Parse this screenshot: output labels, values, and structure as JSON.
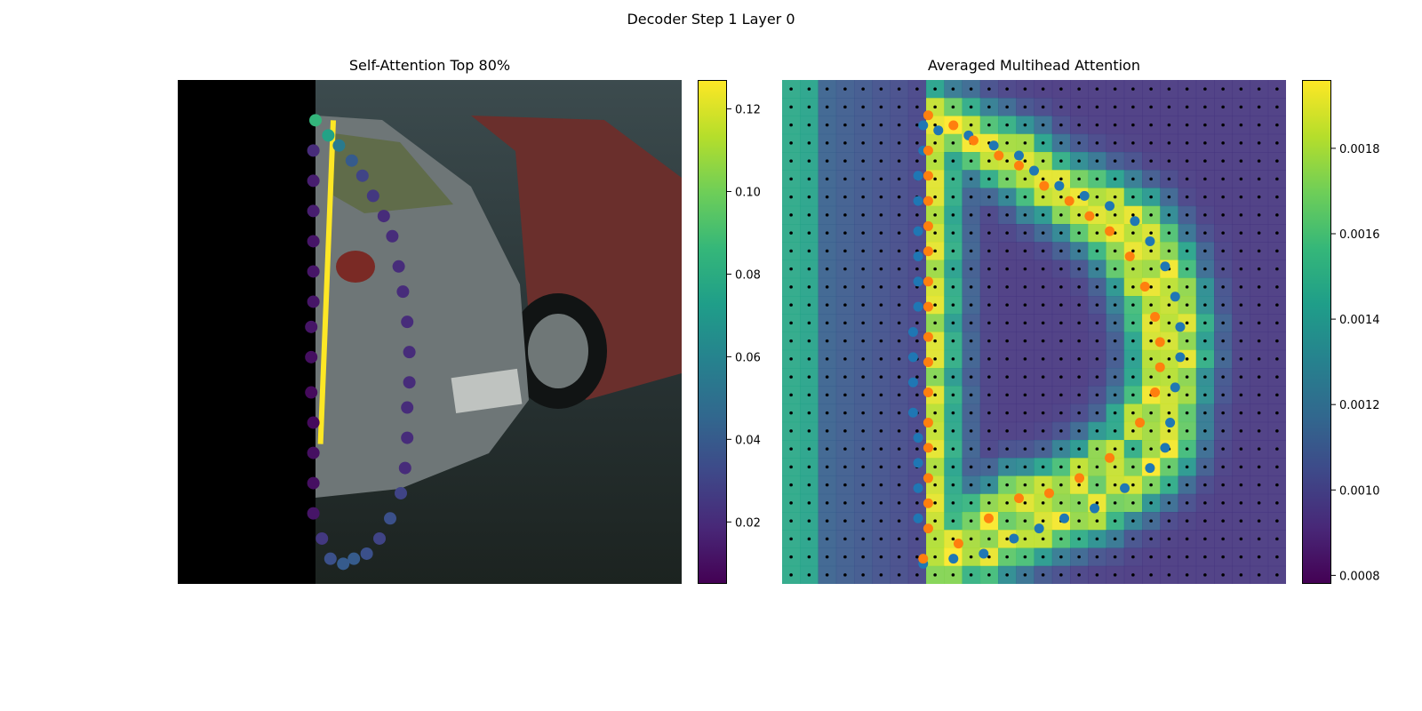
{
  "figure": {
    "title": "Decoder Step 1 Layer 0"
  },
  "chart_data": [
    {
      "type": "scatter",
      "title": "Self-Attention Top 80%",
      "background": "camera image (parked cars), left part masked black",
      "colorbar": {
        "ticks": [
          "0.02",
          "0.04",
          "0.06",
          "0.08",
          "0.10",
          "0.12"
        ],
        "range": [
          0.005,
          0.127
        ],
        "colormap": "viridis"
      },
      "attention_link": {
        "from_point": 0,
        "to_point": 26,
        "value": 0.125,
        "color": "#fde725"
      },
      "points": [
        {
          "x": 0.0,
          "y": 0.92,
          "value": 0.085
        },
        {
          "x": 0.06,
          "y": 0.89,
          "value": 0.075
        },
        {
          "x": 0.11,
          "y": 0.87,
          "value": 0.055
        },
        {
          "x": 0.17,
          "y": 0.84,
          "value": 0.04
        },
        {
          "x": 0.22,
          "y": 0.81,
          "value": 0.03
        },
        {
          "x": 0.27,
          "y": 0.77,
          "value": 0.025
        },
        {
          "x": 0.32,
          "y": 0.73,
          "value": 0.02
        },
        {
          "x": 0.36,
          "y": 0.69,
          "value": 0.02
        },
        {
          "x": 0.39,
          "y": 0.63,
          "value": 0.02
        },
        {
          "x": 0.41,
          "y": 0.58,
          "value": 0.02
        },
        {
          "x": 0.43,
          "y": 0.52,
          "value": 0.02
        },
        {
          "x": 0.44,
          "y": 0.46,
          "value": 0.02
        },
        {
          "x": 0.44,
          "y": 0.4,
          "value": 0.02
        },
        {
          "x": 0.43,
          "y": 0.35,
          "value": 0.02
        },
        {
          "x": 0.43,
          "y": 0.29,
          "value": 0.02
        },
        {
          "x": 0.42,
          "y": 0.23,
          "value": 0.02
        },
        {
          "x": 0.4,
          "y": 0.18,
          "value": 0.03
        },
        {
          "x": 0.35,
          "y": 0.13,
          "value": 0.035
        },
        {
          "x": 0.3,
          "y": 0.09,
          "value": 0.03
        },
        {
          "x": 0.24,
          "y": 0.06,
          "value": 0.035
        },
        {
          "x": 0.18,
          "y": 0.05,
          "value": 0.04
        },
        {
          "x": 0.13,
          "y": 0.04,
          "value": 0.04
        },
        {
          "x": 0.07,
          "y": 0.05,
          "value": 0.035
        },
        {
          "x": 0.03,
          "y": 0.09,
          "value": 0.025
        },
        {
          "x": -0.01,
          "y": 0.14,
          "value": 0.012
        },
        {
          "x": -0.01,
          "y": 0.2,
          "value": 0.01
        },
        {
          "x": -0.01,
          "y": 0.26,
          "value": 0.01
        },
        {
          "x": -0.01,
          "y": 0.32,
          "value": 0.008
        },
        {
          "x": -0.02,
          "y": 0.38,
          "value": 0.008
        },
        {
          "x": -0.02,
          "y": 0.45,
          "value": 0.01
        },
        {
          "x": -0.02,
          "y": 0.51,
          "value": 0.012
        },
        {
          "x": -0.01,
          "y": 0.56,
          "value": 0.012
        },
        {
          "x": -0.01,
          "y": 0.62,
          "value": 0.012
        },
        {
          "x": -0.01,
          "y": 0.68,
          "value": 0.012
        },
        {
          "x": -0.01,
          "y": 0.74,
          "value": 0.015
        },
        {
          "x": -0.01,
          "y": 0.8,
          "value": 0.015
        },
        {
          "x": -0.01,
          "y": 0.86,
          "value": 0.02
        }
      ]
    },
    {
      "type": "heatmap",
      "title": "Averaged Multihead Attention",
      "background": "camera image overlaid with attention heatmap and grid of reference points",
      "colorbar": {
        "ticks": [
          "0.0008",
          "0.0010",
          "0.0012",
          "0.0014",
          "0.0016",
          "0.0018"
        ],
        "range": [
          0.00078,
          0.00196
        ],
        "colormap": "viridis"
      },
      "grid": {
        "cols": 28,
        "rows": 28
      },
      "series": [
        {
          "color": "#1f77b4",
          "points": [
            [
              0.28,
              0.91
            ],
            [
              0.31,
              0.9
            ],
            [
              0.37,
              0.89
            ],
            [
              0.42,
              0.87
            ],
            [
              0.47,
              0.85
            ],
            [
              0.5,
              0.82
            ],
            [
              0.55,
              0.79
            ],
            [
              0.6,
              0.77
            ],
            [
              0.65,
              0.75
            ],
            [
              0.7,
              0.72
            ],
            [
              0.73,
              0.68
            ],
            [
              0.76,
              0.63
            ],
            [
              0.78,
              0.57
            ],
            [
              0.79,
              0.51
            ],
            [
              0.79,
              0.45
            ],
            [
              0.78,
              0.39
            ],
            [
              0.77,
              0.32
            ],
            [
              0.76,
              0.27
            ],
            [
              0.73,
              0.23
            ],
            [
              0.68,
              0.19
            ],
            [
              0.62,
              0.15
            ],
            [
              0.56,
              0.13
            ],
            [
              0.51,
              0.11
            ],
            [
              0.46,
              0.09
            ],
            [
              0.4,
              0.06
            ],
            [
              0.34,
              0.05
            ],
            [
              0.28,
              0.04
            ],
            [
              0.27,
              0.13
            ],
            [
              0.27,
              0.19
            ],
            [
              0.27,
              0.24
            ],
            [
              0.27,
              0.29
            ],
            [
              0.26,
              0.34
            ],
            [
              0.26,
              0.4
            ],
            [
              0.26,
              0.45
            ],
            [
              0.26,
              0.5
            ],
            [
              0.27,
              0.55
            ],
            [
              0.27,
              0.6
            ],
            [
              0.27,
              0.65
            ],
            [
              0.27,
              0.7
            ],
            [
              0.27,
              0.76
            ],
            [
              0.27,
              0.81
            ],
            [
              0.28,
              0.86
            ]
          ]
        },
        {
          "color": "#ff7f0e",
          "points": [
            [
              0.29,
              0.93
            ],
            [
              0.34,
              0.91
            ],
            [
              0.38,
              0.88
            ],
            [
              0.43,
              0.85
            ],
            [
              0.47,
              0.83
            ],
            [
              0.52,
              0.79
            ],
            [
              0.57,
              0.76
            ],
            [
              0.61,
              0.73
            ],
            [
              0.65,
              0.7
            ],
            [
              0.69,
              0.65
            ],
            [
              0.72,
              0.59
            ],
            [
              0.74,
              0.53
            ],
            [
              0.75,
              0.48
            ],
            [
              0.75,
              0.43
            ],
            [
              0.74,
              0.38
            ],
            [
              0.71,
              0.32
            ],
            [
              0.65,
              0.25
            ],
            [
              0.59,
              0.21
            ],
            [
              0.53,
              0.18
            ],
            [
              0.47,
              0.17
            ],
            [
              0.41,
              0.13
            ],
            [
              0.35,
              0.08
            ],
            [
              0.28,
              0.05
            ],
            [
              0.29,
              0.11
            ],
            [
              0.29,
              0.16
            ],
            [
              0.29,
              0.21
            ],
            [
              0.29,
              0.27
            ],
            [
              0.29,
              0.32
            ],
            [
              0.29,
              0.38
            ],
            [
              0.29,
              0.44
            ],
            [
              0.29,
              0.49
            ],
            [
              0.29,
              0.55
            ],
            [
              0.29,
              0.6
            ],
            [
              0.29,
              0.66
            ],
            [
              0.29,
              0.71
            ],
            [
              0.29,
              0.76
            ],
            [
              0.29,
              0.81
            ],
            [
              0.29,
              0.86
            ]
          ]
        }
      ]
    }
  ]
}
